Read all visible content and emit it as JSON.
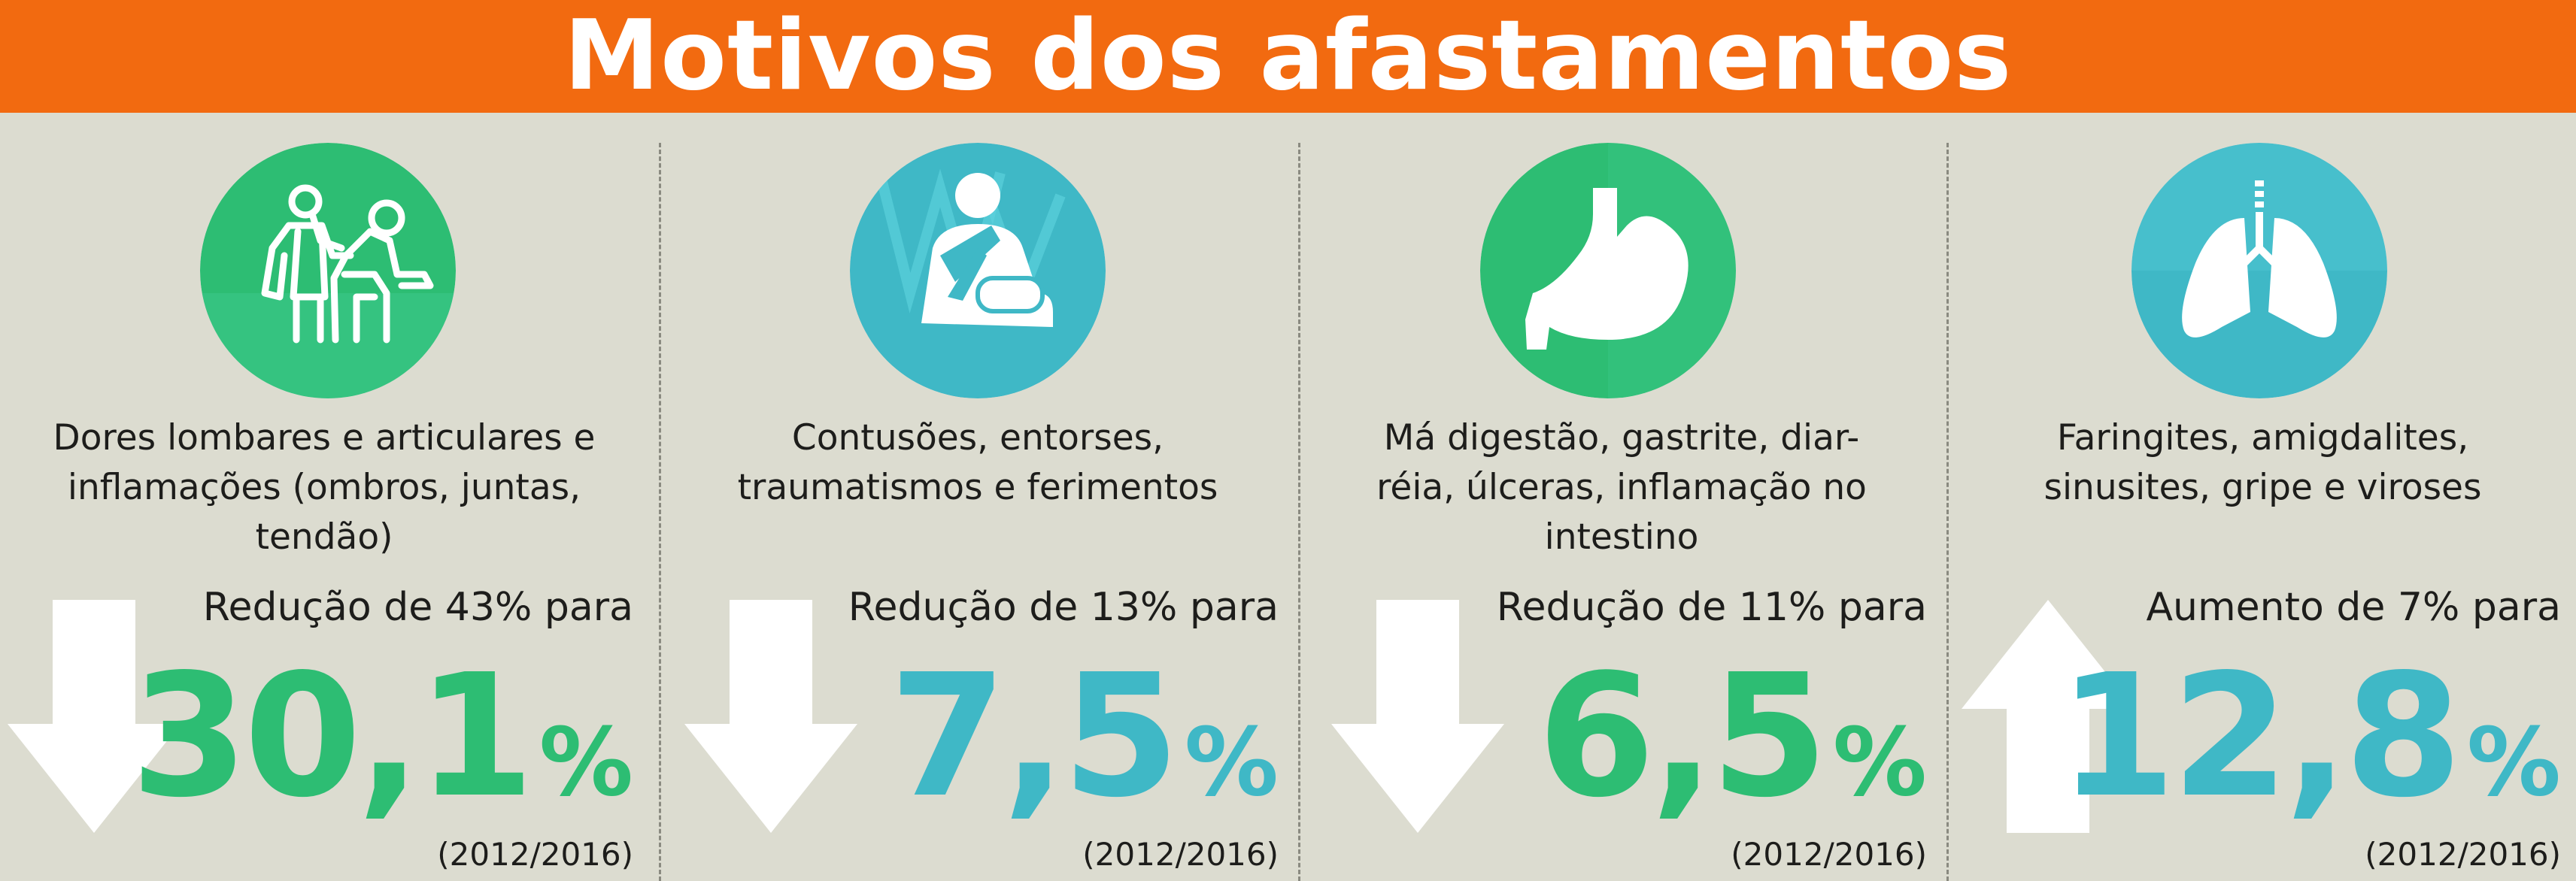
{
  "title": "Motivos dos afastamentos",
  "colors": {
    "header": "#f26a10",
    "background": "#dcdcd0",
    "green": "#2dbd73",
    "teal": "#3fb8c6",
    "arrow": "#ffffff"
  },
  "columns": [
    {
      "icon": "doctor-examining-patient-icon",
      "color": "green",
      "description": "Dores lombares e articulares e inflamações (ombros, juntas, tendão)",
      "change": "Redução de 43% para",
      "direction": "down",
      "value": "30,1",
      "unit": "%",
      "period": "(2012/2016)"
    },
    {
      "icon": "arm-sling-icon",
      "color": "teal",
      "description": "Contusões, entorses, traumatismos e ferimentos",
      "change": "Redução de 13% para",
      "direction": "down",
      "value": "7,5",
      "unit": "%",
      "period": "(2012/2016)"
    },
    {
      "icon": "stomach-icon",
      "color": "green",
      "description": "Má digestão, gastrite, diar-réia, úlceras, inflamação no intestino",
      "change": "Redução de 11% para",
      "direction": "down",
      "value": "6,5",
      "unit": "%",
      "period": "(2012/2016)"
    },
    {
      "icon": "lungs-icon",
      "color": "teal",
      "description": "Faringites, amigdalites, sinusites, gripe e viroses",
      "change": "Aumento de 7% para",
      "direction": "up",
      "value": "12,8",
      "unit": "%",
      "period": "(2012/2016)"
    }
  ]
}
